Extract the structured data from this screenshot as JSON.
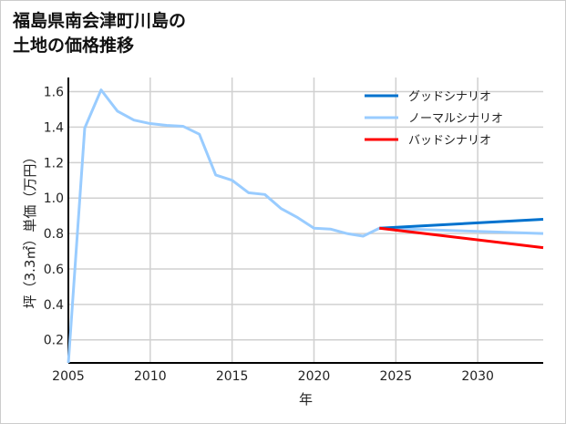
{
  "chart_data": {
    "type": "line",
    "title_lines": [
      "福島県南会津町川島の",
      "土地の価格推移"
    ],
    "xlabel": "年",
    "ylabel": "坪（3.3㎡）単価（万円）",
    "xlim": [
      2005,
      2034
    ],
    "ylim": [
      0.07,
      1.68
    ],
    "xticks": [
      2005,
      2010,
      2015,
      2020,
      2025,
      2030
    ],
    "yticks": [
      0.2,
      0.4,
      0.6,
      0.8,
      1.0,
      1.2,
      1.4,
      1.6
    ],
    "ytick_labels": [
      "0.2",
      "0.4",
      "0.6",
      "0.8",
      "1.0",
      "1.2",
      "1.4",
      "1.6"
    ],
    "grid": true,
    "legend_position": "top-right",
    "series": [
      {
        "name": "グッドシナリオ",
        "color": "#0072CE",
        "x": [
          2024,
          2034
        ],
        "y": [
          0.83,
          0.88
        ]
      },
      {
        "name": "ノーマルシナリオ",
        "color": "#99CCFF",
        "x": [
          2005,
          2006,
          2007,
          2008,
          2009,
          2010,
          2011,
          2012,
          2013,
          2014,
          2015,
          2016,
          2017,
          2018,
          2019,
          2020,
          2021,
          2022,
          2023,
          2024,
          2034
        ],
        "y": [
          0.07,
          1.395,
          1.61,
          1.49,
          1.44,
          1.42,
          1.41,
          1.405,
          1.36,
          1.13,
          1.1,
          1.03,
          1.02,
          0.94,
          0.89,
          0.83,
          0.825,
          0.8,
          0.785,
          0.83,
          0.8
        ]
      },
      {
        "name": "バッドシナリオ",
        "color": "#FF0000",
        "x": [
          2024,
          2034
        ],
        "y": [
          0.83,
          0.72
        ]
      }
    ]
  }
}
